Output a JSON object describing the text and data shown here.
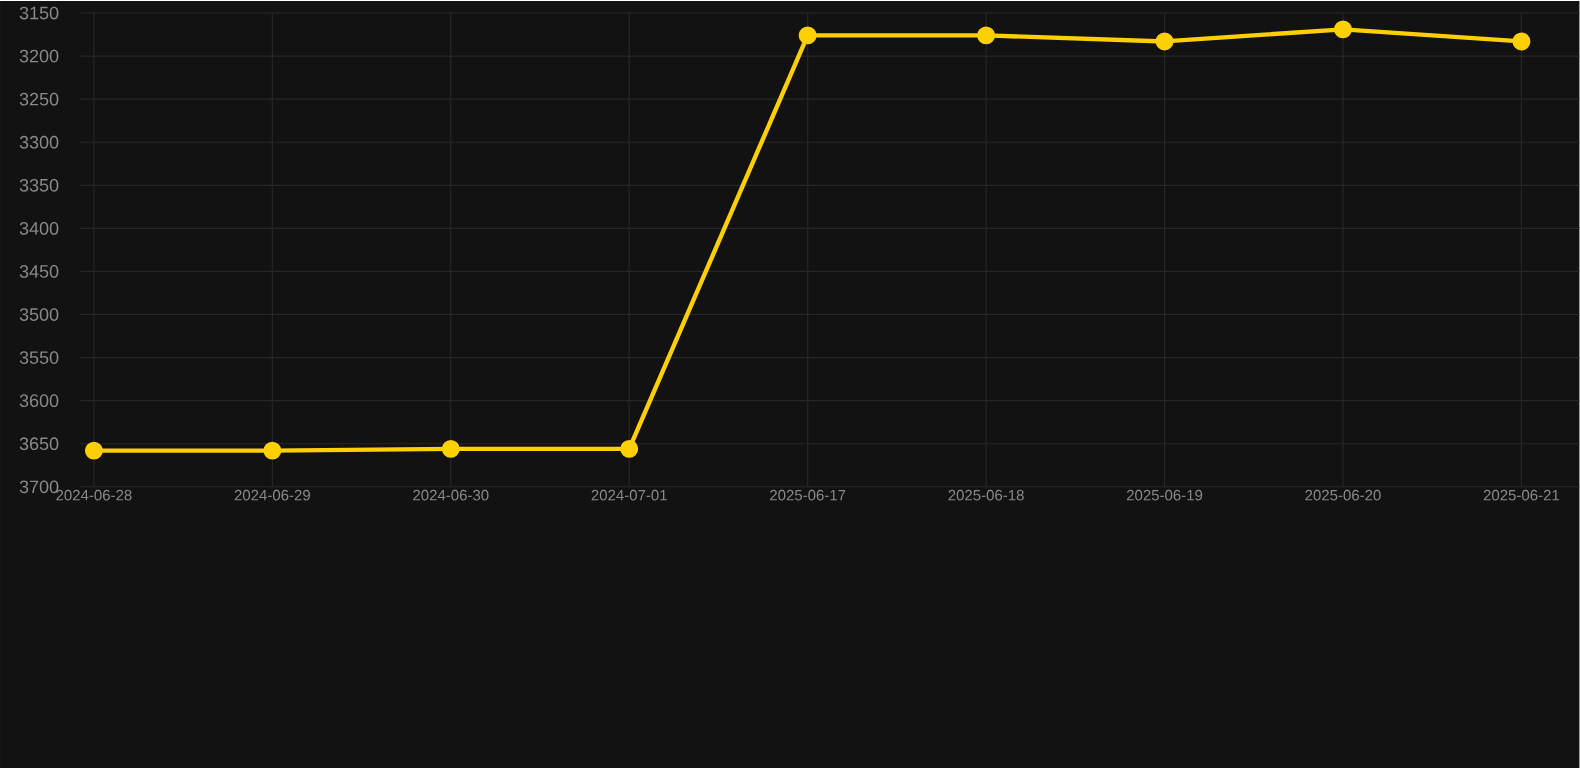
{
  "chart_data": {
    "type": "line",
    "categories": [
      "2024-06-28",
      "2024-06-29",
      "2024-06-30",
      "2024-07-01",
      "2025-06-17",
      "2025-06-18",
      "2025-06-19",
      "2025-06-20",
      "2025-06-21"
    ],
    "series": [
      {
        "color": "#ffd000",
        "values": [
          3658,
          3658,
          3656,
          3656,
          3176,
          3176,
          3183,
          3169,
          3183
        ]
      }
    ],
    "ylim": [
      3700,
      3150
    ],
    "yticks": [
      3150,
      3200,
      3250,
      3300,
      3350,
      3400,
      3450,
      3500,
      3550,
      3600,
      3650,
      3700
    ],
    "grid": true,
    "marker": "circle",
    "line_style": "solid"
  }
}
